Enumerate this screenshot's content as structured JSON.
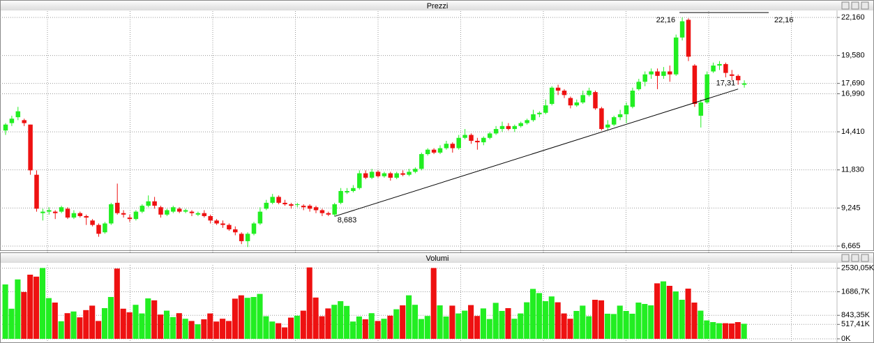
{
  "chart_data": [
    {
      "type": "candlestick",
      "title": "Prezzi",
      "up_color": "#22ee22",
      "down_color": "#ee1111",
      "open": [
        14.5,
        15.0,
        15.4,
        15.2,
        14.9,
        11.5,
        8.9,
        9.0,
        9.0,
        9.0,
        9.2,
        8.6,
        8.9,
        8.7,
        8.4,
        8.1,
        7.6,
        8.2,
        9.6,
        8.9,
        8.6,
        8.5,
        9.0,
        9.4,
        9.7,
        9.3,
        8.8,
        9.0,
        9.2,
        9.0,
        9.0,
        8.8,
        8.9,
        8.7,
        8.4,
        8.2,
        8.1,
        7.8,
        7.5,
        7.0,
        7.5,
        8.2,
        9.2,
        9.6,
        10.0,
        9.6,
        9.5,
        9.5,
        9.4,
        9.4,
        9.3,
        9.1,
        8.9,
        8.8,
        9.6,
        10.3,
        10.4,
        10.6,
        11.6,
        11.3,
        11.7,
        11.4,
        11.6,
        11.3,
        11.6,
        11.5,
        11.7,
        11.9,
        12.9,
        13.2,
        13.0,
        13.3,
        13.6,
        13.3,
        14.0,
        14.2,
        13.8,
        13.7,
        14.0,
        14.3,
        14.6,
        14.8,
        14.6,
        14.8,
        15.0,
        15.2,
        15.6,
        15.7,
        16.3,
        17.4,
        17.2,
        16.7,
        16.2,
        16.4,
        16.9,
        17.1,
        16.0,
        14.7,
        14.9,
        15.4,
        15.6,
        16.1,
        17.3,
        17.8,
        18.3,
        18.5,
        18.2,
        18.5,
        18.3,
        20.8,
        22.0,
        18.9,
        15.5,
        16.4,
        18.5,
        18.9,
        19.0,
        18.3,
        18.2,
        17.6
      ],
      "high": [
        15.0,
        15.5,
        16.1,
        15.3,
        14.9,
        11.8,
        9.2,
        9.3,
        9.1,
        9.4,
        9.3,
        9.1,
        9.0,
        8.8,
        8.5,
        8.2,
        8.3,
        9.6,
        10.9,
        9.1,
        8.8,
        9.1,
        9.5,
        10.1,
        10.0,
        9.4,
        9.2,
        9.4,
        9.3,
        9.2,
        9.1,
        9.0,
        9.1,
        8.8,
        8.5,
        8.4,
        8.2,
        8.0,
        7.6,
        7.6,
        8.3,
        9.3,
        9.8,
        10.2,
        10.1,
        9.8,
        9.6,
        9.6,
        9.5,
        9.5,
        9.4,
        9.2,
        9.0,
        9.6,
        10.6,
        10.6,
        10.8,
        11.8,
        11.8,
        11.9,
        11.8,
        11.7,
        11.7,
        11.7,
        11.8,
        11.9,
        12.0,
        13.0,
        13.3,
        13.3,
        13.5,
        13.8,
        13.7,
        14.2,
        14.6,
        14.3,
        14.0,
        14.1,
        14.4,
        14.8,
        15.1,
        15.0,
        14.9,
        15.1,
        15.3,
        15.9,
        15.8,
        16.6,
        17.5,
        17.6,
        17.3,
        16.8,
        16.6,
        17.2,
        17.4,
        17.2,
        16.1,
        15.2,
        15.5,
        15.9,
        16.4,
        17.4,
        18.0,
        18.5,
        18.7,
        18.7,
        18.8,
        18.9,
        21.0,
        22.16,
        22.1,
        19.0,
        16.6,
        18.5,
        19.1,
        19.2,
        19.1,
        18.6,
        18.3,
        17.9
      ],
      "low": [
        14.2,
        14.8,
        15.2,
        14.8,
        11.5,
        9.0,
        8.4,
        8.8,
        8.5,
        8.9,
        8.5,
        8.5,
        8.6,
        8.1,
        8.0,
        7.3,
        7.5,
        8.1,
        8.8,
        8.6,
        8.3,
        8.4,
        8.9,
        9.3,
        9.2,
        8.6,
        8.7,
        8.9,
        8.9,
        8.9,
        8.7,
        8.7,
        8.6,
        8.2,
        8.1,
        7.9,
        7.7,
        7.4,
        6.8,
        6.6,
        7.4,
        8.1,
        9.1,
        9.5,
        9.5,
        9.4,
        9.2,
        9.3,
        9.1,
        9.0,
        8.9,
        8.7,
        8.7,
        8.683,
        9.5,
        10.2,
        10.3,
        10.5,
        11.2,
        11.2,
        11.3,
        11.3,
        11.1,
        11.2,
        11.4,
        11.4,
        11.6,
        11.8,
        12.8,
        12.9,
        12.9,
        13.2,
        13.0,
        13.2,
        13.9,
        13.6,
        13.2,
        13.5,
        13.9,
        14.2,
        14.4,
        14.5,
        14.4,
        14.7,
        14.9,
        15.1,
        15.4,
        15.6,
        16.2,
        16.9,
        16.7,
        16.0,
        16.1,
        16.3,
        16.8,
        15.9,
        14.5,
        14.5,
        14.8,
        15.2,
        15.0,
        16.0,
        17.2,
        17.5,
        18.0,
        17.3,
        18.0,
        17.8,
        18.2,
        20.6,
        19.2,
        16.1,
        14.7,
        16.3,
        18.4,
        18.6,
        18.1,
        17.9,
        17.6,
        17.4
      ],
      "close": [
        14.9,
        15.3,
        15.8,
        15.0,
        11.8,
        9.2,
        9.0,
        9.1,
        8.9,
        9.3,
        8.6,
        8.9,
        8.7,
        8.6,
        8.1,
        7.5,
        8.2,
        9.5,
        8.9,
        8.8,
        8.5,
        9.0,
        9.4,
        9.7,
        9.4,
        8.8,
        9.1,
        9.3,
        9.0,
        9.1,
        8.9,
        8.9,
        8.7,
        8.4,
        8.2,
        8.1,
        7.8,
        7.6,
        7.0,
        7.5,
        8.2,
        9.0,
        9.6,
        10.0,
        9.6,
        9.5,
        9.4,
        9.5,
        9.3,
        9.2,
        9.1,
        8.9,
        8.8,
        9.5,
        10.4,
        10.4,
        10.6,
        11.6,
        11.3,
        11.7,
        11.4,
        11.6,
        11.3,
        11.6,
        11.5,
        11.7,
        11.9,
        12.9,
        13.2,
        13.0,
        13.3,
        13.6,
        13.3,
        14.0,
        14.2,
        13.8,
        13.7,
        14.0,
        14.3,
        14.6,
        14.8,
        14.6,
        14.8,
        15.0,
        15.2,
        15.6,
        15.7,
        16.2,
        17.4,
        17.2,
        16.9,
        16.2,
        16.4,
        16.9,
        17.2,
        16.0,
        14.6,
        14.9,
        15.4,
        15.6,
        16.2,
        17.2,
        17.8,
        18.3,
        18.5,
        18.2,
        18.5,
        18.3,
        20.8,
        21.9,
        19.5,
        16.3,
        16.4,
        18.3,
        18.9,
        19.0,
        18.4,
        18.2,
        17.9,
        17.69
      ],
      "ylim": [
        6.43,
        22.68
      ],
      "yticks": [
        {
          "value": 22.16,
          "label": "22,160"
        },
        {
          "value": 19.58,
          "label": "19,580"
        },
        {
          "value": 17.69,
          "label": "17,690"
        },
        {
          "value": 16.99,
          "label": "16,990"
        },
        {
          "value": 14.41,
          "label": "14,410"
        },
        {
          "value": 11.83,
          "label": "11,830"
        },
        {
          "value": 9.245,
          "label": "9,245"
        },
        {
          "value": 6.665,
          "label": "6,665"
        }
      ],
      "grid": true,
      "high_marker": {
        "value": 22.16,
        "label": "22,16"
      },
      "trendline": {
        "start": {
          "value": 8.683,
          "label": "8,683"
        },
        "end": {
          "value": 17.31,
          "label": "17,31"
        }
      }
    },
    {
      "type": "bar",
      "title": "Volumi",
      "values": [
        1950,
        1080,
        2130,
        1680,
        2300,
        2230,
        2540,
        1460,
        1300,
        630,
        920,
        980,
        770,
        1030,
        1190,
        640,
        1100,
        1500,
        2520,
        1080,
        950,
        1220,
        910,
        1450,
        1380,
        870,
        1010,
        780,
        920,
        720,
        640,
        520,
        700,
        910,
        620,
        720,
        640,
        1440,
        1560,
        1470,
        1500,
        1610,
        810,
        620,
        560,
        410,
        760,
        830,
        1010,
        2560,
        1480,
        810,
        1090,
        1220,
        1350,
        1180,
        620,
        800,
        700,
        920,
        640,
        720,
        830,
        1060,
        1200,
        1560,
        1220,
        710,
        820,
        2540,
        1200,
        800,
        1190,
        910,
        1010,
        1210,
        820,
        1090,
        710,
        1290,
        1000,
        1100,
        720,
        910,
        1310,
        1790,
        1640,
        1350,
        1520,
        1310,
        910,
        720,
        1000,
        1190,
        810,
        1400,
        1380,
        900,
        890,
        1190,
        1000,
        900,
        1300,
        1250,
        1200,
        1990,
        2060,
        1900,
        1700,
        1400,
        1800,
        1300,
        1010,
        660,
        600,
        560,
        560,
        550,
        600,
        540
      ],
      "ylim": [
        0,
        2700
      ],
      "yticks": [
        {
          "value": 2530.05,
          "label": "2530,05K"
        },
        {
          "value": 1686.7,
          "label": "1686,7K"
        },
        {
          "value": 843.35,
          "label": "843,35K"
        },
        {
          "value": 517.41,
          "label": "517,41K"
        },
        {
          "value": 0,
          "label": "0K"
        }
      ],
      "grid": true
    }
  ]
}
